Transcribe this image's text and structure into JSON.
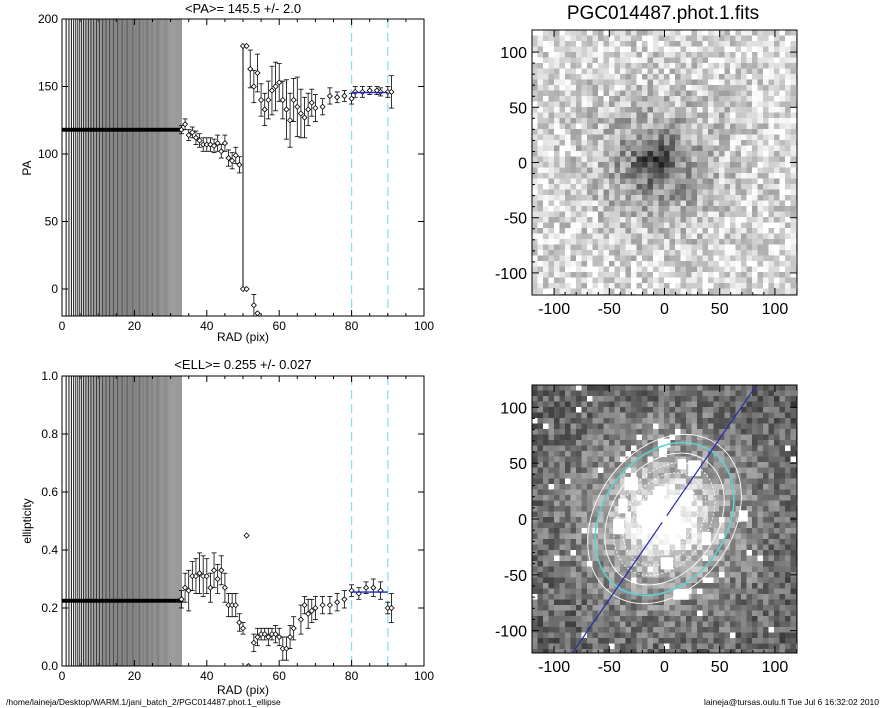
{
  "footer": {
    "path": "/home/laineja/Desktop/WARM.1/jani_batch_2/PGC014487.phot.1_ellipse",
    "user_stamp": "laineja@tursas.oulu.fi  Tue Jul  6 16:32:02 2010"
  },
  "chart_data": [
    {
      "type": "scatter",
      "title": "<PA>= 145.5 +/-   2.0",
      "xlabel": "RAD (pix)",
      "ylabel": "PA",
      "xlim": [
        0,
        100
      ],
      "ylim": [
        -20,
        200
      ],
      "xticks": [
        0,
        20,
        40,
        60,
        80,
        100
      ],
      "yticks": [
        0,
        50,
        100,
        150,
        200
      ],
      "grid": false,
      "colors": {
        "points": "#000000",
        "fit_line": "#2020c0",
        "guide_lines": "#80e0f0"
      },
      "vertical_guides": [
        80,
        90
      ],
      "fit_segment": {
        "x": [
          80,
          90
        ],
        "y": [
          145.5,
          145.5
        ]
      },
      "dense_region": {
        "x_start": 0,
        "x_end": 33,
        "level": 118
      },
      "points": [
        {
          "x": 33,
          "y": 118,
          "err": 3
        },
        {
          "x": 34,
          "y": 122,
          "err": 4
        },
        {
          "x": 35,
          "y": 114,
          "err": 4
        },
        {
          "x": 36,
          "y": 116,
          "err": 4
        },
        {
          "x": 37,
          "y": 112,
          "err": 5
        },
        {
          "x": 38,
          "y": 110,
          "err": 5
        },
        {
          "x": 39,
          "y": 107,
          "err": 5
        },
        {
          "x": 40,
          "y": 107,
          "err": 5
        },
        {
          "x": 41,
          "y": 107,
          "err": 5
        },
        {
          "x": 42,
          "y": 106,
          "err": 5
        },
        {
          "x": 43,
          "y": 108,
          "err": 6
        },
        {
          "x": 44,
          "y": 102,
          "err": 5
        },
        {
          "x": 45,
          "y": 108,
          "err": 6
        },
        {
          "x": 46,
          "y": 97,
          "err": 6
        },
        {
          "x": 47,
          "y": 95,
          "err": 6
        },
        {
          "x": 48,
          "y": 99,
          "err": 6
        },
        {
          "x": 49,
          "y": 92,
          "err": 6
        },
        {
          "x": 50,
          "y": 180,
          "err": 0
        },
        {
          "x": 51,
          "y": 180,
          "err": 0
        },
        {
          "x": 50,
          "y": 0,
          "err": 0
        },
        {
          "x": 51,
          "y": 0,
          "err": 0
        },
        {
          "x": 52,
          "y": 163,
          "err": 14
        },
        {
          "x": 53,
          "y": 150,
          "err": 12
        },
        {
          "x": 54,
          "y": 160,
          "err": 14
        },
        {
          "x": 53,
          "y": -12,
          "err": 8
        },
        {
          "x": 54,
          "y": -18,
          "err": 0
        },
        {
          "x": 55,
          "y": 140,
          "err": 12
        },
        {
          "x": 56,
          "y": 133,
          "err": 12
        },
        {
          "x": 57,
          "y": 140,
          "err": 14
        },
        {
          "x": 58,
          "y": 147,
          "err": 18
        },
        {
          "x": 59,
          "y": 150,
          "err": 18
        },
        {
          "x": 60,
          "y": 153,
          "err": 14
        },
        {
          "x": 61,
          "y": 140,
          "err": 14
        },
        {
          "x": 62,
          "y": 133,
          "err": 22
        },
        {
          "x": 63,
          "y": 125,
          "err": 20
        },
        {
          "x": 64,
          "y": 140,
          "err": 16
        },
        {
          "x": 65,
          "y": 135,
          "err": 22
        },
        {
          "x": 66,
          "y": 130,
          "err": 18
        },
        {
          "x": 67,
          "y": 127,
          "err": 15
        },
        {
          "x": 68,
          "y": 133,
          "err": 12
        },
        {
          "x": 69,
          "y": 138,
          "err": 10
        },
        {
          "x": 70,
          "y": 134,
          "err": 10
        },
        {
          "x": 72,
          "y": 135,
          "err": 6
        },
        {
          "x": 74,
          "y": 143,
          "err": 6
        },
        {
          "x": 76,
          "y": 142,
          "err": 4
        },
        {
          "x": 78,
          "y": 143,
          "err": 4
        },
        {
          "x": 80,
          "y": 141,
          "err": 4
        },
        {
          "x": 81,
          "y": 146,
          "err": 4
        },
        {
          "x": 83,
          "y": 146,
          "err": 4
        },
        {
          "x": 85,
          "y": 147,
          "err": 3
        },
        {
          "x": 87,
          "y": 147,
          "err": 3
        },
        {
          "x": 88,
          "y": 146,
          "err": 3
        },
        {
          "x": 90,
          "y": 146,
          "err": 4
        },
        {
          "x": 91,
          "y": 146,
          "err": 12
        }
      ]
    },
    {
      "type": "heatmap",
      "title": "PGC014487.phot.1.fits",
      "xlim": [
        -120,
        120
      ],
      "ylim": [
        -120,
        120
      ],
      "xticks": [
        -100,
        -50,
        0,
        50,
        100
      ],
      "yticks": [
        -100,
        -50,
        0,
        50,
        100
      ],
      "colormap": "grayscale-inverted",
      "source": {
        "center": [
          -8,
          0
        ],
        "core_radius": 20,
        "halo_radius": 85
      }
    },
    {
      "type": "scatter",
      "title": "<ELL>= 0.255 +/-  0.027",
      "xlabel": "RAD (pix)",
      "ylabel": "ellipticity",
      "xlim": [
        0,
        100
      ],
      "ylim": [
        0,
        1
      ],
      "xticks": [
        0,
        20,
        40,
        60,
        80,
        100
      ],
      "yticks": [
        0.0,
        0.2,
        0.4,
        0.6,
        0.8,
        1.0
      ],
      "grid": false,
      "colors": {
        "points": "#000000",
        "fit_line": "#2020c0",
        "guide_lines": "#80e0f0"
      },
      "vertical_guides": [
        80,
        90
      ],
      "fit_segment": {
        "x": [
          80,
          90
        ],
        "y": [
          0.255,
          0.255
        ]
      },
      "dense_region": {
        "x_start": 0,
        "x_end": 33,
        "level": 0.225
      },
      "points": [
        {
          "x": 33,
          "y": 0.23,
          "err": 0.03
        },
        {
          "x": 34,
          "y": 0.27,
          "err": 0.05
        },
        {
          "x": 35,
          "y": 0.26,
          "err": 0.07
        },
        {
          "x": 36,
          "y": 0.31,
          "err": 0.05
        },
        {
          "x": 37,
          "y": 0.31,
          "err": 0.06
        },
        {
          "x": 38,
          "y": 0.32,
          "err": 0.07
        },
        {
          "x": 39,
          "y": 0.31,
          "err": 0.07
        },
        {
          "x": 40,
          "y": 0.31,
          "err": 0.06
        },
        {
          "x": 41,
          "y": 0.27,
          "err": 0.05
        },
        {
          "x": 42,
          "y": 0.33,
          "err": 0.06
        },
        {
          "x": 43,
          "y": 0.3,
          "err": 0.05
        },
        {
          "x": 44,
          "y": 0.33,
          "err": 0.05
        },
        {
          "x": 45,
          "y": 0.27,
          "err": 0.05
        },
        {
          "x": 46,
          "y": 0.21,
          "err": 0.04
        },
        {
          "x": 47,
          "y": 0.21,
          "err": 0.04
        },
        {
          "x": 48,
          "y": 0.21,
          "err": 0.04
        },
        {
          "x": 49,
          "y": 0.15,
          "err": 0.03
        },
        {
          "x": 50,
          "y": 0.13,
          "err": 0.02
        },
        {
          "x": 51,
          "y": 0.45,
          "err": 0
        },
        {
          "x": 51.5,
          "y": 0.0,
          "err": 0
        },
        {
          "x": 53,
          "y": 0.08,
          "err": 0.03
        },
        {
          "x": 54,
          "y": 0.1,
          "err": 0.03
        },
        {
          "x": 55,
          "y": 0.11,
          "err": 0.02
        },
        {
          "x": 56,
          "y": 0.11,
          "err": 0.02
        },
        {
          "x": 57,
          "y": 0.1,
          "err": 0.03
        },
        {
          "x": 58,
          "y": 0.11,
          "err": 0.02
        },
        {
          "x": 59,
          "y": 0.11,
          "err": 0.03
        },
        {
          "x": 60,
          "y": 0.1,
          "err": 0.03
        },
        {
          "x": 61,
          "y": 0.06,
          "err": 0.04
        },
        {
          "x": 62,
          "y": 0.06,
          "err": 0.04
        },
        {
          "x": 63,
          "y": 0.1,
          "err": 0.04
        },
        {
          "x": 64,
          "y": 0.13,
          "err": 0.04
        },
        {
          "x": 66,
          "y": 0.16,
          "err": 0.05
        },
        {
          "x": 67,
          "y": 0.21,
          "err": 0.03
        },
        {
          "x": 68,
          "y": 0.18,
          "err": 0.05
        },
        {
          "x": 69,
          "y": 0.19,
          "err": 0.04
        },
        {
          "x": 70,
          "y": 0.2,
          "err": 0.04
        },
        {
          "x": 72,
          "y": 0.21,
          "err": 0.03
        },
        {
          "x": 74,
          "y": 0.21,
          "err": 0.03
        },
        {
          "x": 76,
          "y": 0.22,
          "err": 0.03
        },
        {
          "x": 78,
          "y": 0.23,
          "err": 0.03
        },
        {
          "x": 80,
          "y": 0.26,
          "err": 0.02
        },
        {
          "x": 82,
          "y": 0.25,
          "err": 0.02
        },
        {
          "x": 84,
          "y": 0.27,
          "err": 0.02
        },
        {
          "x": 86,
          "y": 0.27,
          "err": 0.03
        },
        {
          "x": 88,
          "y": 0.26,
          "err": 0.03
        },
        {
          "x": 90,
          "y": 0.2,
          "err": 0.02
        },
        {
          "x": 91,
          "y": 0.2,
          "err": 0.05
        }
      ]
    },
    {
      "type": "heatmap",
      "title": "",
      "xlim": [
        -120,
        120
      ],
      "ylim": [
        -120,
        120
      ],
      "xticks": [
        -100,
        -50,
        0,
        50,
        100
      ],
      "yticks": [
        -100,
        -50,
        0,
        50,
        100
      ],
      "colormap": "grayscale",
      "colors": {
        "outer_ellipse": "#60d0d0",
        "major_axis": "#2828b0",
        "isophotes": "#ffffff"
      },
      "ellipses": [
        {
          "rx": 62,
          "ry": 82,
          "angle": 35
        },
        {
          "rx": 56,
          "ry": 74,
          "angle": 35
        },
        {
          "rx": 48,
          "ry": 64,
          "angle": 35
        },
        {
          "rx": 40,
          "ry": 55,
          "angle": 35
        },
        {
          "rx": 33,
          "ry": 45,
          "angle": 35
        },
        {
          "rx": 26,
          "ry": 36,
          "angle": 35
        },
        {
          "rx": 20,
          "ry": 28,
          "angle": 35
        },
        {
          "rx": 14,
          "ry": 20,
          "angle": 30
        },
        {
          "rx": 9,
          "ry": 13,
          "angle": 30
        },
        {
          "rx": 5,
          "ry": 7,
          "angle": 30
        }
      ],
      "major_axis_line": {
        "angle": 55.5
      }
    }
  ]
}
